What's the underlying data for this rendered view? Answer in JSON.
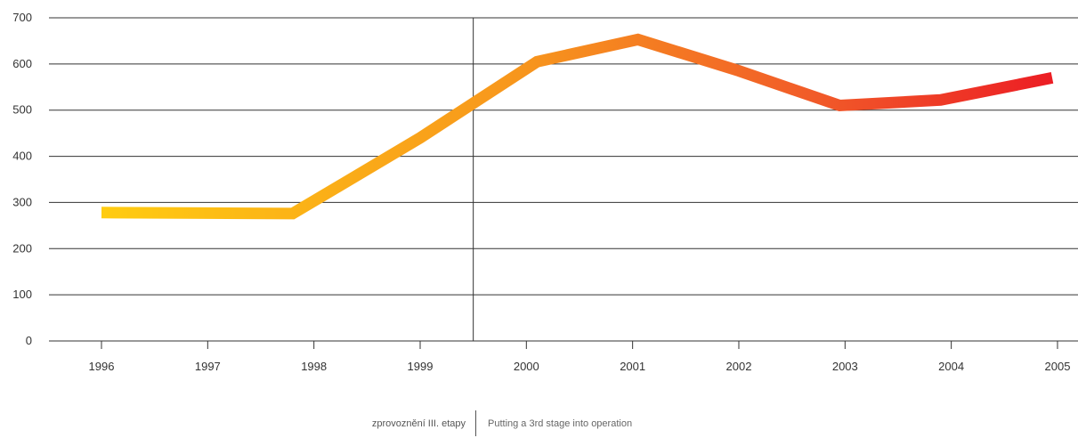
{
  "chart_data": {
    "type": "line",
    "title": "",
    "xlabel": "",
    "ylabel": "",
    "categories": [
      "1996",
      "1997",
      "1998",
      "1999",
      "2000",
      "2001",
      "2002",
      "2003",
      "2004",
      "2005"
    ],
    "x_points": [
      1996.0,
      1997.0,
      1997.8,
      1999.0,
      2000.1,
      2001.05,
      2002.0,
      2002.95,
      2003.9,
      2004.95
    ],
    "series": [
      {
        "values": [
          278,
          277,
          276,
          440,
          605,
          653,
          585,
          510,
          522,
          570
        ]
      }
    ],
    "ylim": [
      0,
      700
    ],
    "yticks": [
      0,
      100,
      200,
      300,
      400,
      500,
      600,
      700
    ],
    "grid": true,
    "marker_line_x": 1999.5,
    "line_gradient": [
      "#FFCC11",
      "#F7941D",
      "#F15A29",
      "#EC1C24"
    ],
    "axis_color": "#333333"
  },
  "legend": {
    "czech": "zprovoznění III. etapy",
    "english": "Putting a 3rd stage into operation"
  }
}
